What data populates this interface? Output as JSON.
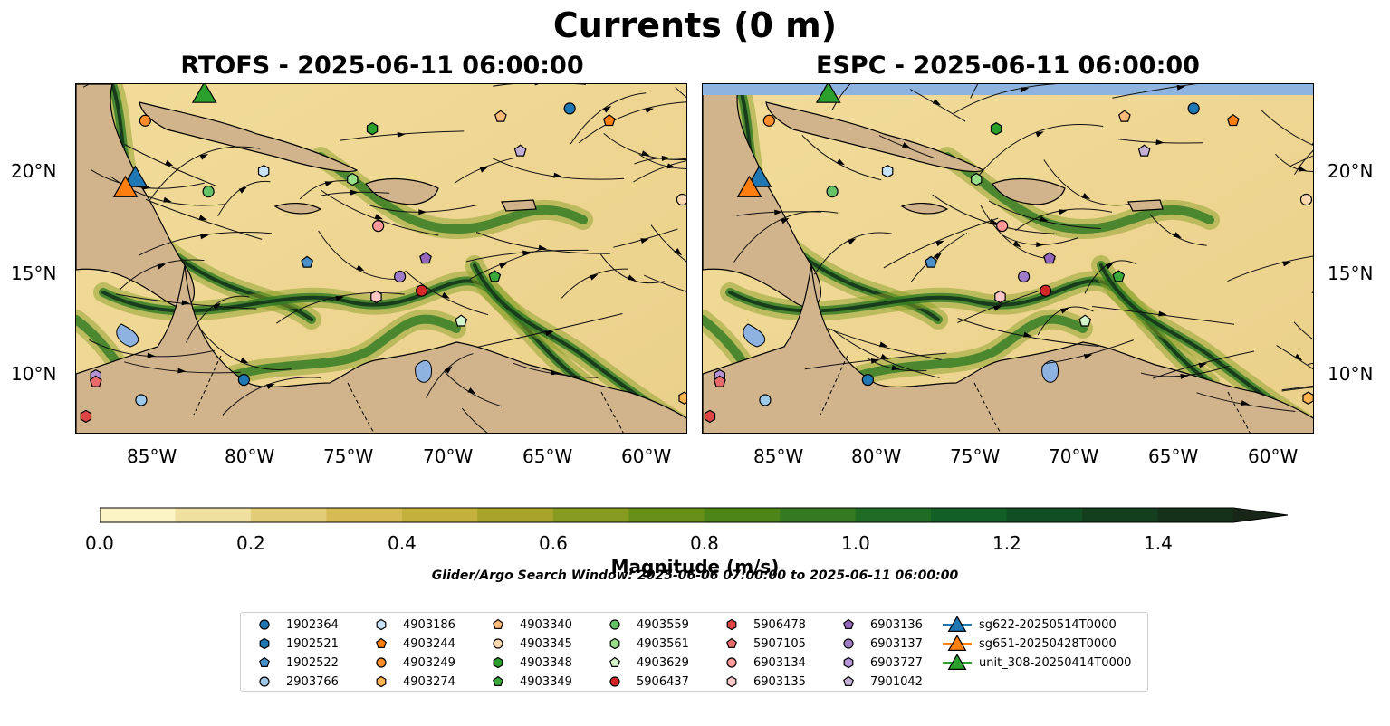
{
  "figure": {
    "title": "Currents (0 m)",
    "panels": [
      {
        "id": "rtofs",
        "title": "RTOFS - 2025-06-11 06:00:00"
      },
      {
        "id": "espc",
        "title": "ESPC - 2025-06-11 06:00:00"
      }
    ],
    "lon_ticks": [
      "85°W",
      "80°W",
      "75°W",
      "70°W",
      "65°W",
      "60°W"
    ],
    "lat_ticks": [
      "20°N",
      "15°N",
      "10°N"
    ],
    "colorbar": {
      "label": "Magnitude (m/s)",
      "ticks": [
        "0.0",
        "0.2",
        "0.4",
        "0.6",
        "0.8",
        "1.0",
        "1.2",
        "1.4"
      ],
      "colors": [
        "#fbf3c4",
        "#efe0a0",
        "#e3cc78",
        "#d6bb55",
        "#c4b03c",
        "#a8a42b",
        "#879b20",
        "#689019",
        "#4d8519",
        "#347a20",
        "#1f6c24",
        "#125f27",
        "#104f24",
        "#133f1f",
        "#15311a",
        "#172617"
      ]
    },
    "search_window": "Glider/Argo Search Window: 2025-06-06 07:00:00 to 2025-06-11 06:00:00",
    "land_color": "#d2b48c",
    "lake_color": "#8fb3e0"
  },
  "legend": {
    "items": [
      {
        "label": "1902364",
        "marker": "circle",
        "color": "#1f77b4"
      },
      {
        "label": "1902521",
        "marker": "hexagon",
        "color": "#1f77b4"
      },
      {
        "label": "1902522",
        "marker": "pentagon",
        "color": "#4a90c8"
      },
      {
        "label": "2903766",
        "marker": "circle",
        "color": "#9ecae9"
      },
      {
        "label": "4903186",
        "marker": "hexagon",
        "color": "#c6e3f7"
      },
      {
        "label": "4903244",
        "marker": "pentagon",
        "color": "#ff7f0e"
      },
      {
        "label": "4903249",
        "marker": "circle",
        "color": "#ff8c28"
      },
      {
        "label": "4903274",
        "marker": "hexagon",
        "color": "#ffb44f"
      },
      {
        "label": "4903340",
        "marker": "pentagon",
        "color": "#ffbb78"
      },
      {
        "label": "4903345",
        "marker": "circle",
        "color": "#ffd8b0"
      },
      {
        "label": "4903348",
        "marker": "hexagon",
        "color": "#2ca02c"
      },
      {
        "label": "4903349",
        "marker": "pentagon",
        "color": "#3ba83b"
      },
      {
        "label": "4903559",
        "marker": "circle",
        "color": "#66c266"
      },
      {
        "label": "4903561",
        "marker": "hexagon",
        "color": "#98df8a"
      },
      {
        "label": "4903629",
        "marker": "pentagon",
        "color": "#d4f5cc"
      },
      {
        "label": "5906437",
        "marker": "circle",
        "color": "#d62728"
      },
      {
        "label": "5906478",
        "marker": "hexagon",
        "color": "#e04546"
      },
      {
        "label": "5907105",
        "marker": "pentagon",
        "color": "#e86a6a"
      },
      {
        "label": "6903134",
        "marker": "circle",
        "color": "#ff9896"
      },
      {
        "label": "6903135",
        "marker": "hexagon",
        "color": "#ffc7c5"
      },
      {
        "label": "6903136",
        "marker": "pentagon",
        "color": "#9467bd"
      },
      {
        "label": "6903137",
        "marker": "circle",
        "color": "#a07bc8"
      },
      {
        "label": "6903727",
        "marker": "hexagon",
        "color": "#b594d6"
      },
      {
        "label": "7901042",
        "marker": "pentagon",
        "color": "#c5b0d5"
      },
      {
        "label": "sg622-20250514T0000",
        "marker": "triangle",
        "color": "#1f77b4"
      },
      {
        "label": "sg651-20250428T0000",
        "marker": "triangle",
        "color": "#ff7f0e"
      },
      {
        "label": "unit_308-20250414T0000",
        "marker": "triangle",
        "color": "#2ca02c"
      }
    ]
  },
  "chart_data": {
    "type": "map",
    "lon_range": [
      -89,
      -58
    ],
    "lat_range": [
      7,
      24.3
    ],
    "variable": "Magnitude (m/s)",
    "colorbar_range": [
      0.0,
      1.5
    ],
    "floats": [
      {
        "id": "1902364",
        "lon": -64,
        "lat": 23.1
      },
      {
        "id": "4903244",
        "lon": -62,
        "lat": 22.5
      },
      {
        "id": "4903340",
        "lon": -67.5,
        "lat": 22.7
      },
      {
        "id": "4903348",
        "lon": -74,
        "lat": 22.1
      },
      {
        "id": "4903249",
        "lon": -85.5,
        "lat": 22.5
      },
      {
        "id": "7901042",
        "lon": -66.5,
        "lat": 21
      },
      {
        "id": "4903186",
        "lon": -79.5,
        "lat": 20
      },
      {
        "id": "4903561",
        "lon": -75,
        "lat": 19.6
      },
      {
        "id": "4903559",
        "lon": -82.3,
        "lat": 19
      },
      {
        "id": "4903345",
        "lon": -58.3,
        "lat": 18.6
      },
      {
        "id": "6903134",
        "lon": -73.7,
        "lat": 17.3
      },
      {
        "id": "1902522",
        "lon": -77.3,
        "lat": 15.5
      },
      {
        "id": "6903136",
        "lon": -71.3,
        "lat": 15.7
      },
      {
        "id": "6903137",
        "lon": -72.6,
        "lat": 14.8
      },
      {
        "id": "4903349",
        "lon": -67.8,
        "lat": 14.8
      },
      {
        "id": "5906437",
        "lon": -71.5,
        "lat": 14.1
      },
      {
        "id": "6903135",
        "lon": -73.8,
        "lat": 13.8
      },
      {
        "id": "4903629",
        "lon": -69.5,
        "lat": 12.6
      },
      {
        "id": "1902364b",
        "lon": -80.5,
        "lat": 9.7
      },
      {
        "id": "6903727",
        "lon": -88,
        "lat": 9.9
      },
      {
        "id": "5907105",
        "lon": -88,
        "lat": 9.6
      },
      {
        "id": "2903766",
        "lon": -85.7,
        "lat": 8.7
      },
      {
        "id": "5906478",
        "lon": -88.5,
        "lat": 7.9
      },
      {
        "id": "4903274",
        "lon": -58.2,
        "lat": 8.8
      }
    ],
    "gliders": [
      {
        "id": "sg622-20250514T0000",
        "lon": -86,
        "lat": 19.7
      },
      {
        "id": "sg651-20250428T0000",
        "lon": -86.5,
        "lat": 19.2
      },
      {
        "id": "unit_308-20250414T0000",
        "lon": -82.5,
        "lat": 24.3
      }
    ]
  }
}
